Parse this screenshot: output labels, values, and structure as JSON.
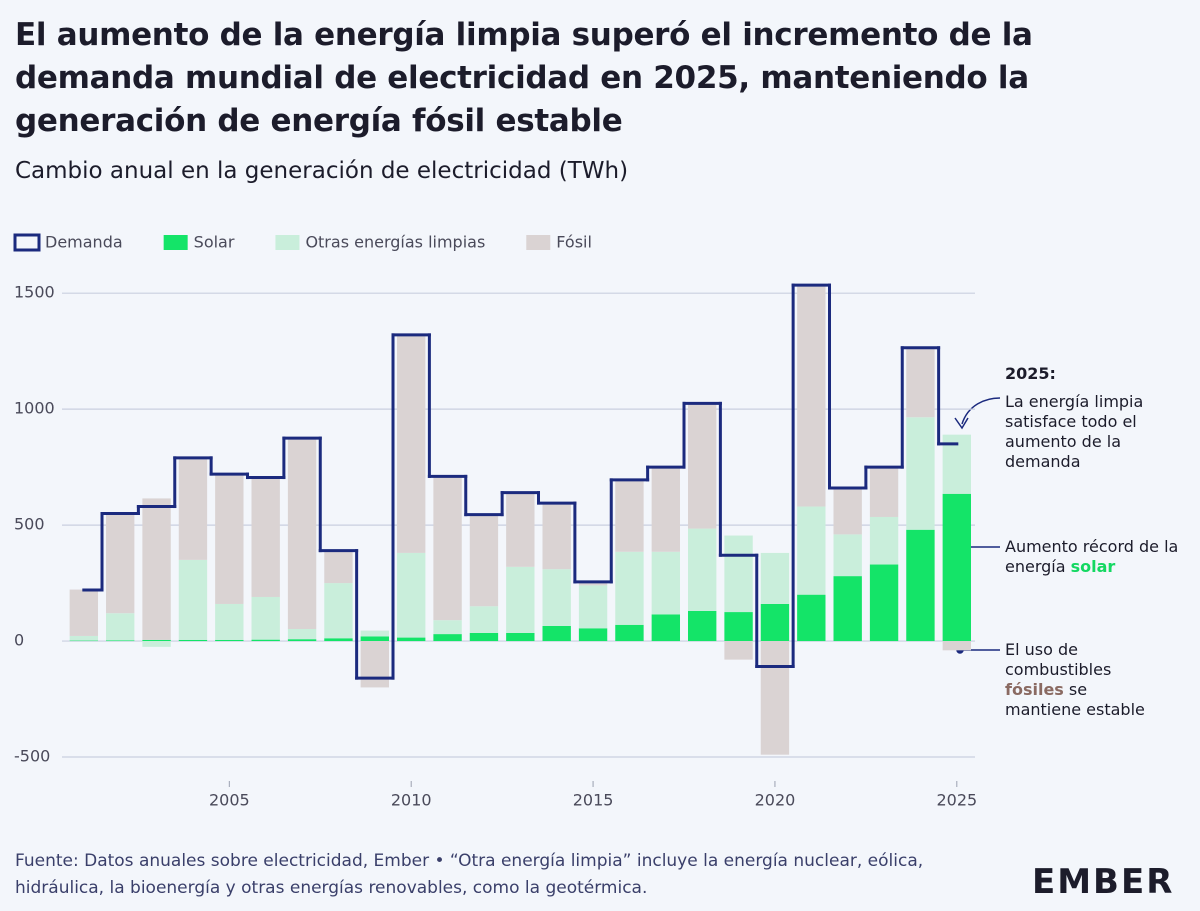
{
  "chart_data": {
    "type": "bar",
    "stacked": true,
    "title": "El aumento de la energía limpia superó el incremento de la demanda mundial de electricidad en 2025, manteniendo la generación de energía fósil estable",
    "subtitle": "Cambio anual en la generación de electricidad (TWh)",
    "legend": "top-left",
    "grid": true,
    "x": [
      2001,
      2002,
      2003,
      2004,
      2005,
      2006,
      2007,
      2008,
      2009,
      2010,
      2011,
      2012,
      2013,
      2014,
      2015,
      2016,
      2017,
      2018,
      2019,
      2020,
      2021,
      2022,
      2023,
      2024,
      2025
    ],
    "xlim": [
      2000.4,
      2025.5
    ],
    "xticks": [
      2005,
      2010,
      2015,
      2020,
      2025
    ],
    "ylim": [
      -500,
      1600
    ],
    "yticks": [
      -500,
      0,
      500,
      1000,
      1500
    ],
    "series": [
      {
        "name": "Demanda",
        "type": "step",
        "color": "#1b2a7e",
        "values": [
          220,
          550,
          580,
          790,
          720,
          705,
          875,
          390,
          -160,
          1320,
          710,
          545,
          640,
          595,
          255,
          695,
          750,
          1025,
          370,
          -110,
          1535,
          660,
          750,
          1265,
          850
        ]
      },
      {
        "name": "Solar",
        "type": "bar",
        "color": "#14e468",
        "values": [
          2,
          3,
          5,
          5,
          5,
          6,
          8,
          12,
          20,
          15,
          30,
          35,
          35,
          65,
          55,
          70,
          115,
          130,
          125,
          160,
          200,
          280,
          330,
          480,
          635
        ]
      },
      {
        "name": "Otras energías limpias",
        "type": "bar",
        "color": "#c9eedb",
        "values": [
          20,
          117,
          -25,
          345,
          155,
          184,
          44,
          238,
          25,
          365,
          60,
          115,
          285,
          245,
          185,
          315,
          270,
          355,
          330,
          220,
          380,
          180,
          205,
          485,
          255
        ]
      },
      {
        "name": "Fósil",
        "type": "bar",
        "color": "#dad3d3",
        "values": [
          200,
          425,
          610,
          440,
          555,
          510,
          823,
          140,
          -200,
          940,
          620,
          395,
          320,
          285,
          10,
          310,
          360,
          540,
          -80,
          -490,
          955,
          195,
          215,
          300,
          -40
        ]
      }
    ],
    "annotations": [
      {
        "parts": [
          "2025:"
        ]
      },
      {
        "parts": [
          "La energía limpia satisface todo el aumento de la demanda"
        ]
      },
      {
        "parts": [
          "Aumento récord de la energía ",
          "solar"
        ]
      },
      {
        "parts": [
          "El uso de combustibles ",
          "fósiles",
          " se mantiene estable"
        ]
      }
    ],
    "footer": "Fuente: Datos anuales sobre electricidad, Ember • “Otra energía limpia” incluye la energía nuclear, eólica, hidráulica, la bioenergía y otras energías renovables, como la geotérmica.",
    "logo": "EMBER"
  }
}
